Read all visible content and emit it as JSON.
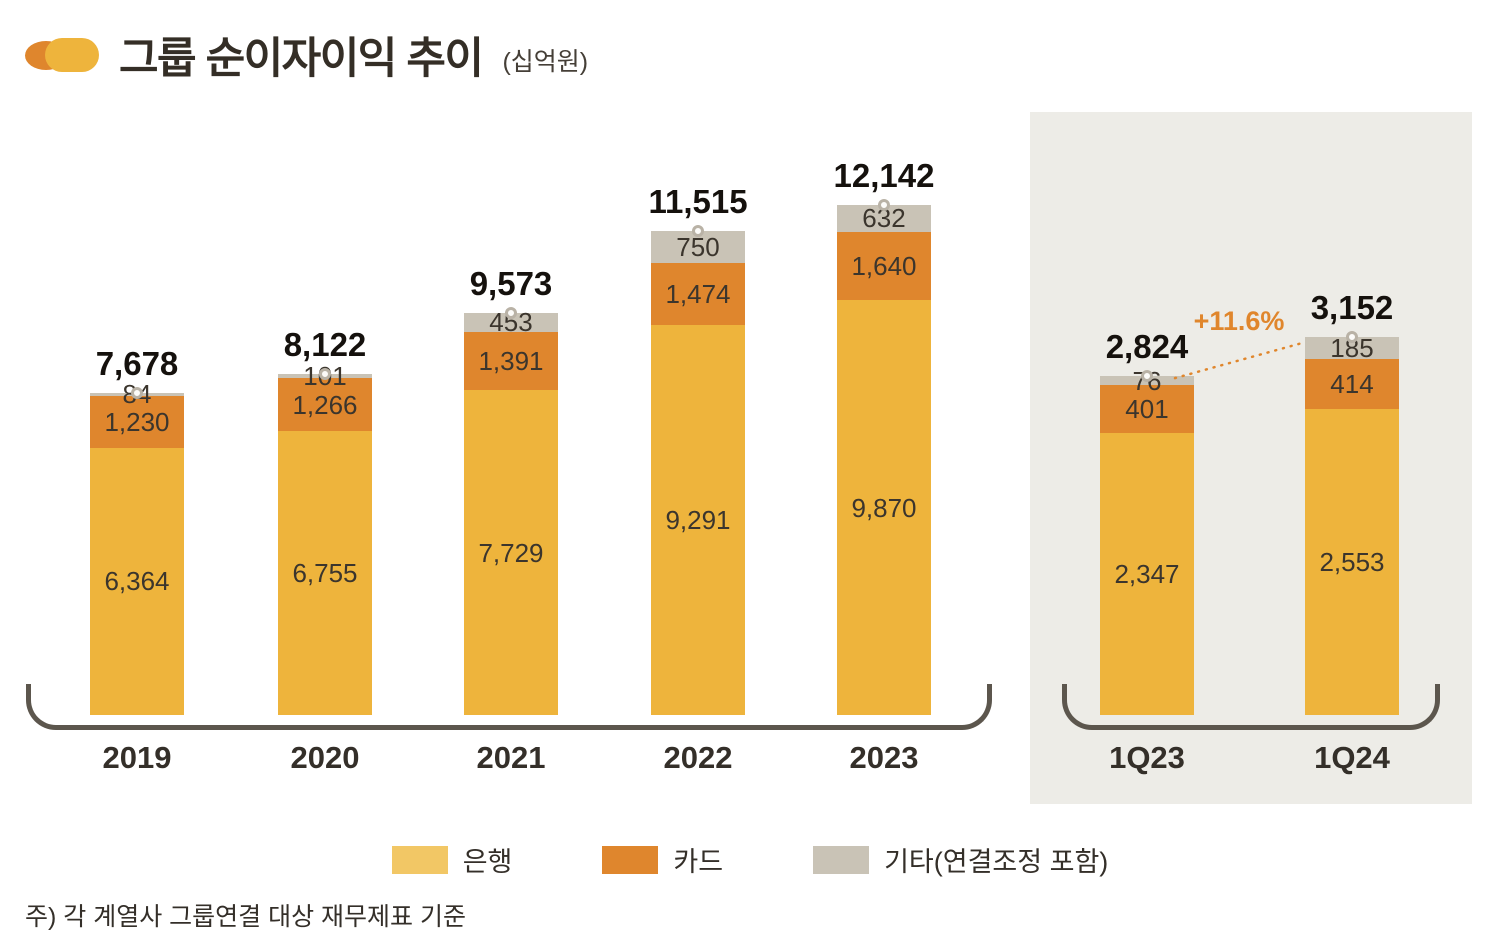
{
  "header": {
    "title": "그룹 순이자이익 추이",
    "unit": "(십억원)"
  },
  "legend": {
    "items": [
      {
        "label": "은행"
      },
      {
        "label": "카드"
      },
      {
        "label": "기타(연결조정 포함)"
      }
    ]
  },
  "annotation": {
    "label": "+11.6%"
  },
  "note": "주) 각 계열사 그룹연결 대상 재무제표 기준",
  "colors": {
    "bank": "#eeb43c",
    "bank_legend": "#f2c765",
    "card": "#df862d",
    "others": "#c9c3b6",
    "panel_bg": "#edece7",
    "bracket": "#5c564d",
    "annotation": "#e0862c",
    "text_dark": "#332e28"
  },
  "chart_data": {
    "type": "bar",
    "subtype": "stacked",
    "title": "그룹 순이자이익 추이",
    "unit": "십억원",
    "legend_position": "bottom",
    "grid": false,
    "groups": [
      {
        "name": "annual",
        "categories": [
          "2019",
          "2020",
          "2021",
          "2022",
          "2023"
        ],
        "totals": [
          7678,
          8122,
          9573,
          11515,
          12142
        ],
        "series": [
          {
            "name": "은행",
            "key": "bank",
            "values": [
              6364,
              6755,
              7729,
              9291,
              9870
            ]
          },
          {
            "name": "카드",
            "key": "card",
            "values": [
              1230,
              1266,
              1391,
              1474,
              1640
            ]
          },
          {
            "name": "기타(연결조정 포함)",
            "key": "others",
            "values": [
              84,
              101,
              453,
              750,
              632
            ]
          }
        ]
      },
      {
        "name": "quarterly",
        "highlighted": true,
        "categories": [
          "1Q23",
          "1Q24"
        ],
        "totals": [
          2824,
          3152
        ],
        "growth_annotation": "+11.6%",
        "series": [
          {
            "name": "은행",
            "key": "bank",
            "values": [
              2347,
              2553
            ]
          },
          {
            "name": "카드",
            "key": "card",
            "values": [
              401,
              414
            ]
          },
          {
            "name": "기타(연결조정 포함)",
            "key": "others",
            "values": [
              76,
              185
            ]
          }
        ]
      }
    ]
  }
}
